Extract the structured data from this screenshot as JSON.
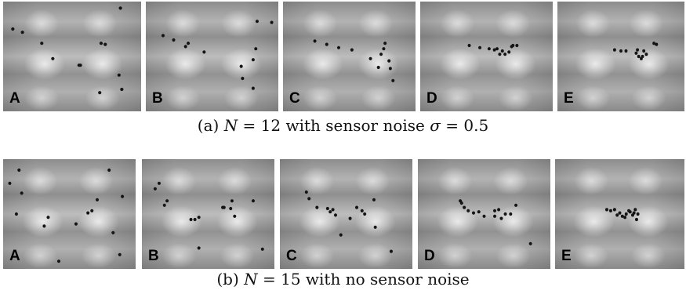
{
  "rows": [
    {
      "id": "a",
      "caption": {
        "prefix": "(a) ",
        "n_symbol": "N",
        "n_eq": " = 12",
        "mid": " with sensor noise ",
        "sigma_symbol": "σ",
        "sigma_eq": " = 0.5"
      },
      "panels": [
        {
          "label": "A",
          "dots": [
            [
              0.07,
              0.25
            ],
            [
              0.14,
              0.28
            ],
            [
              0.28,
              0.38
            ],
            [
              0.36,
              0.52
            ],
            [
              0.55,
              0.58
            ],
            [
              0.71,
              0.38
            ],
            [
              0.74,
              0.39
            ],
            [
              0.85,
              0.06
            ],
            [
              0.84,
              0.67
            ],
            [
              0.86,
              0.8
            ],
            [
              0.7,
              0.83
            ],
            [
              0.56,
              0.58
            ]
          ]
        },
        {
          "label": "B",
          "dots": [
            [
              0.13,
              0.31
            ],
            [
              0.21,
              0.35
            ],
            [
              0.32,
              0.38
            ],
            [
              0.44,
              0.46
            ],
            [
              0.72,
              0.59
            ],
            [
              0.81,
              0.53
            ],
            [
              0.83,
              0.43
            ],
            [
              0.84,
              0.18
            ],
            [
              0.73,
              0.7
            ],
            [
              0.81,
              0.79
            ],
            [
              0.95,
              0.19
            ],
            [
              0.3,
              0.41
            ]
          ]
        },
        {
          "label": "C",
          "dots": [
            [
              0.24,
              0.36
            ],
            [
              0.33,
              0.39
            ],
            [
              0.42,
              0.42
            ],
            [
              0.52,
              0.44
            ],
            [
              0.66,
              0.52
            ],
            [
              0.74,
              0.48
            ],
            [
              0.76,
              0.43
            ],
            [
              0.77,
              0.38
            ],
            [
              0.8,
              0.54
            ],
            [
              0.81,
              0.61
            ],
            [
              0.72,
              0.6
            ],
            [
              0.83,
              0.72
            ]
          ]
        },
        {
          "label": "D",
          "dots": [
            [
              0.37,
              0.4
            ],
            [
              0.45,
              0.42
            ],
            [
              0.52,
              0.43
            ],
            [
              0.56,
              0.44
            ],
            [
              0.62,
              0.45
            ],
            [
              0.64,
              0.48
            ],
            [
              0.67,
              0.46
            ],
            [
              0.7,
              0.4
            ],
            [
              0.73,
              0.4
            ],
            [
              0.6,
              0.48
            ],
            [
              0.58,
              0.43
            ],
            [
              0.69,
              0.41
            ]
          ]
        },
        {
          "label": "E",
          "dots": [
            [
              0.45,
              0.44
            ],
            [
              0.5,
              0.45
            ],
            [
              0.54,
              0.45
            ],
            [
              0.62,
              0.47
            ],
            [
              0.64,
              0.5
            ],
            [
              0.66,
              0.52
            ],
            [
              0.7,
              0.48
            ],
            [
              0.76,
              0.38
            ],
            [
              0.78,
              0.39
            ],
            [
              0.63,
              0.44
            ],
            [
              0.68,
              0.45
            ],
            [
              0.67,
              0.5
            ]
          ]
        }
      ]
    },
    {
      "id": "b",
      "caption": {
        "prefix": "(b) ",
        "n_symbol": "N",
        "n_eq": " = 15",
        "mid": " with no sensor noise",
        "sigma_symbol": "",
        "sigma_eq": ""
      },
      "panels": [
        {
          "label": "A",
          "dots": [
            [
              0.12,
              0.1
            ],
            [
              0.05,
              0.22
            ],
            [
              0.14,
              0.31
            ],
            [
              0.1,
              0.5
            ],
            [
              0.34,
              0.53
            ],
            [
              0.31,
              0.61
            ],
            [
              0.55,
              0.59
            ],
            [
              0.64,
              0.49
            ],
            [
              0.67,
              0.47
            ],
            [
              0.71,
              0.37
            ],
            [
              0.8,
              0.1
            ],
            [
              0.9,
              0.34
            ],
            [
              0.83,
              0.67
            ],
            [
              0.88,
              0.87
            ],
            [
              0.42,
              0.93
            ]
          ]
        },
        {
          "label": "B",
          "dots": [
            [
              0.13,
              0.22
            ],
            [
              0.1,
              0.27
            ],
            [
              0.19,
              0.38
            ],
            [
              0.17,
              0.42
            ],
            [
              0.37,
              0.55
            ],
            [
              0.43,
              0.53
            ],
            [
              0.61,
              0.44
            ],
            [
              0.67,
              0.45
            ],
            [
              0.68,
              0.38
            ],
            [
              0.84,
              0.38
            ],
            [
              0.7,
              0.52
            ],
            [
              0.4,
              0.55
            ],
            [
              0.43,
              0.81
            ],
            [
              0.91,
              0.82
            ],
            [
              0.62,
              0.44
            ]
          ]
        },
        {
          "label": "C",
          "dots": [
            [
              0.2,
              0.3
            ],
            [
              0.22,
              0.36
            ],
            [
              0.28,
              0.44
            ],
            [
              0.36,
              0.45
            ],
            [
              0.38,
              0.48
            ],
            [
              0.42,
              0.51
            ],
            [
              0.53,
              0.54
            ],
            [
              0.58,
              0.44
            ],
            [
              0.62,
              0.47
            ],
            [
              0.64,
              0.5
            ],
            [
              0.71,
              0.37
            ],
            [
              0.72,
              0.62
            ],
            [
              0.46,
              0.69
            ],
            [
              0.84,
              0.84
            ],
            [
              0.4,
              0.46
            ]
          ]
        },
        {
          "label": "D",
          "dots": [
            [
              0.32,
              0.38
            ],
            [
              0.35,
              0.44
            ],
            [
              0.38,
              0.47
            ],
            [
              0.42,
              0.49
            ],
            [
              0.46,
              0.48
            ],
            [
              0.5,
              0.52
            ],
            [
              0.58,
              0.47
            ],
            [
              0.61,
              0.46
            ],
            [
              0.66,
              0.5
            ],
            [
              0.7,
              0.5
            ],
            [
              0.74,
              0.42
            ],
            [
              0.63,
              0.54
            ],
            [
              0.58,
              0.52
            ],
            [
              0.85,
              0.77
            ],
            [
              0.33,
              0.4
            ]
          ]
        },
        {
          "label": "E",
          "dots": [
            [
              0.4,
              0.46
            ],
            [
              0.43,
              0.47
            ],
            [
              0.46,
              0.46
            ],
            [
              0.5,
              0.49
            ],
            [
              0.52,
              0.52
            ],
            [
              0.55,
              0.5
            ],
            [
              0.58,
              0.48
            ],
            [
              0.6,
              0.51
            ],
            [
              0.62,
              0.46
            ],
            [
              0.64,
              0.5
            ],
            [
              0.63,
              0.55
            ],
            [
              0.57,
              0.47
            ],
            [
              0.48,
              0.51
            ],
            [
              0.61,
              0.49
            ],
            [
              0.54,
              0.53
            ]
          ]
        }
      ]
    }
  ]
}
